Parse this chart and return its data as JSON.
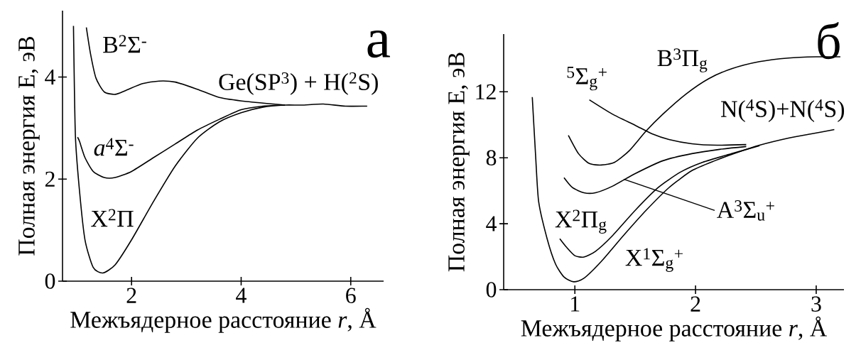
{
  "chart_data": [
    {
      "type": "line",
      "title": "а",
      "xlabel": "Межъядерное расстояние  *r*, Å",
      "ylabel": "Полная энергия  E, эВ",
      "xlim": [
        0.74,
        6.6
      ],
      "ylim": [
        0,
        5.3
      ],
      "xticks": [
        2,
        4,
        6
      ],
      "yticks": [
        0,
        2,
        4
      ],
      "series": [
        {
          "color": "#000000",
          "x": [
            0.94,
            0.975,
            1.05,
            1.15,
            1.3,
            1.475,
            1.7,
            2.0,
            2.4,
            2.8,
            3.2,
            3.6,
            4.0,
            4.4,
            4.8,
            5.1,
            5.5,
            5.9,
            6.3
          ],
          "values": [
            5.0,
            2.85,
            1.77,
            0.81,
            0.27,
            0.16,
            0.32,
            0.81,
            1.56,
            2.26,
            2.8,
            3.12,
            3.3,
            3.41,
            3.45,
            3.45,
            3.47,
            3.43,
            3.43
          ]
        },
        {
          "color": "#000000",
          "x": [
            1.015,
            1.05,
            1.15,
            1.3,
            1.5,
            1.7,
            2.0,
            2.4,
            2.8,
            3.2,
            3.6,
            4.0,
            4.4,
            4.8
          ],
          "values": [
            2.82,
            2.74,
            2.42,
            2.15,
            2.03,
            2.03,
            2.15,
            2.42,
            2.69,
            2.96,
            3.17,
            3.36,
            3.43,
            3.45
          ]
        },
        {
          "color": "#000000",
          "x": [
            1.175,
            1.25,
            1.35,
            1.5,
            1.7,
            1.9,
            2.2,
            2.5,
            2.8,
            3.2,
            3.6,
            4.1,
            4.8
          ],
          "values": [
            4.97,
            4.46,
            3.98,
            3.71,
            3.66,
            3.74,
            3.87,
            3.92,
            3.9,
            3.76,
            3.6,
            3.52,
            3.45
          ]
        }
      ],
      "annotations": [
        "B$^{2}$Σ$^{-}$",
        "*a*$^{4}$Σ$^{-}$",
        "X$^{2}$Π",
        "Ge(SP$^{3}$) + H($^{2}$S)"
      ]
    },
    {
      "type": "line",
      "title": "б",
      "xlabel": "Межъядерное расстояние  *r*, Å",
      "ylabel": "Полная энергия  E, эВ",
      "xlim": [
        0.41,
        3.23
      ],
      "ylim": [
        0,
        15.5
      ],
      "xticks": [
        1,
        2,
        3
      ],
      "yticks": [
        0,
        4,
        8,
        12
      ],
      "series": [
        {
          "color": "#000000",
          "x": [
            0.647,
            0.675,
            0.7,
            0.77,
            0.84,
            0.91,
            0.99,
            1.075,
            1.22,
            1.4,
            1.59,
            1.78,
            1.97,
            2.16,
            2.35,
            2.53,
            2.77,
            2.96,
            3.15
          ],
          "values": [
            11.68,
            8.08,
            5.33,
            3.09,
            1.55,
            0.77,
            0.48,
            0.69,
            1.72,
            3.26,
            4.81,
            6.19,
            7.22,
            7.82,
            8.33,
            8.76,
            9.19,
            9.45,
            9.71
          ]
        },
        {
          "color": "#000000",
          "x": [
            0.875,
            0.93,
            1.0,
            1.075,
            1.17,
            1.31,
            1.5,
            1.69,
            1.875,
            2.06,
            2.3,
            2.53
          ],
          "values": [
            3.09,
            2.58,
            2.06,
            1.98,
            2.32,
            3.26,
            4.81,
            6.19,
            7.13,
            7.73,
            8.25,
            8.73
          ]
        },
        {
          "color": "#000000",
          "x": [
            0.91,
            0.98,
            1.075,
            1.17,
            1.31,
            1.5,
            1.73,
            1.97,
            2.2,
            2.42
          ],
          "values": [
            6.79,
            6.19,
            5.88,
            5.88,
            6.27,
            7.04,
            7.82,
            8.25,
            8.51,
            8.68
          ]
        },
        {
          "color": "#000000",
          "x": [
            0.946,
            1.03,
            1.12,
            1.22,
            1.33,
            1.45,
            1.59,
            1.73,
            1.92,
            2.11,
            2.3,
            2.53,
            2.77,
            3.0,
            3.2
          ],
          "values": [
            9.36,
            8.25,
            7.65,
            7.56,
            7.73,
            8.42,
            9.62,
            10.65,
            11.86,
            12.8,
            13.4,
            13.83,
            14.05,
            14.12,
            14.12
          ]
        },
        {
          "color": "#000000",
          "x": [
            1.12,
            1.31,
            1.5,
            1.64,
            1.78,
            1.97,
            2.18,
            2.42
          ],
          "values": [
            11.51,
            10.65,
            9.97,
            9.45,
            9.11,
            8.85,
            8.76,
            8.8
          ]
        }
      ],
      "annotations": [
        "$^{5}$Σ$_{g}$$^{+}$",
        "B$^{3}$Π$_{g}$",
        "X$^{2}$Π$_{g}$",
        "X$^{1}$Σ$_{g}$$^{+}$",
        {
          "text": "A$^{3}$Σ$_{u}$$^{+}$",
          "x": 1.405,
          "y": 6.7
        },
        "N($^{4}$S)+N($^{4}$S)"
      ]
    }
  ]
}
